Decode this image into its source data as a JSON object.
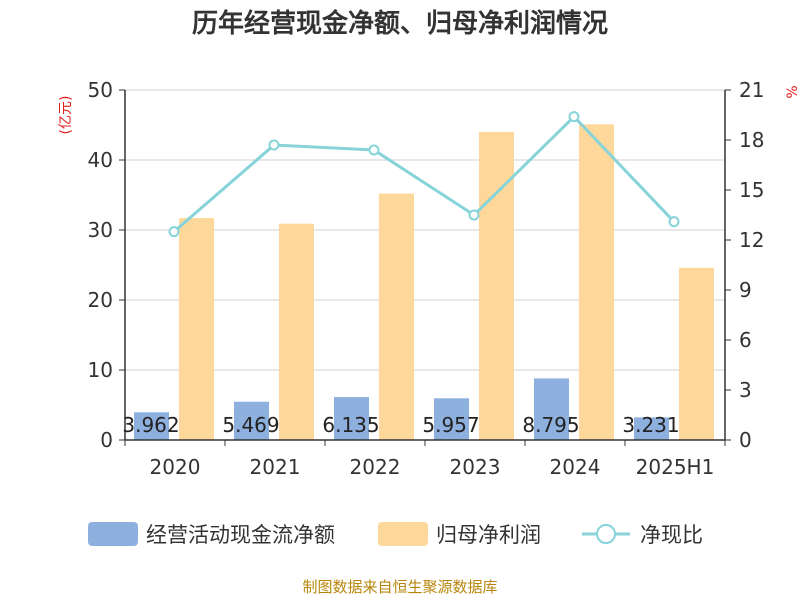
{
  "chart_data": {
    "type": "bar",
    "title": "历年经营现金净额、归母净利润情况",
    "categories": [
      "2020",
      "2021",
      "2022",
      "2023",
      "2024",
      "2025H1"
    ],
    "series": [
      {
        "name": "经营活动现金流净额",
        "type": "bar",
        "axis": "left",
        "values": [
          3.962,
          5.469,
          6.135,
          5.957,
          8.795,
          3.231
        ],
        "labels": [
          "3.962",
          "5.469",
          "6.135",
          "5.957",
          "8.795",
          "3.231"
        ]
      },
      {
        "name": "归母净利润",
        "type": "bar",
        "axis": "left",
        "values": [
          31.7,
          30.9,
          35.2,
          44.0,
          45.1,
          24.6
        ]
      },
      {
        "name": "净现比",
        "type": "line",
        "axis": "right",
        "values": [
          12.5,
          17.7,
          17.4,
          13.5,
          19.4,
          13.1
        ]
      }
    ],
    "y_left": {
      "label": "(亿元)",
      "min": 0,
      "max": 50,
      "ticks": [
        "0",
        "10",
        "20",
        "30",
        "40",
        "50"
      ]
    },
    "y_right": {
      "label": "%",
      "min": 0,
      "max": 21,
      "ticks": [
        "0",
        "3",
        "6",
        "9",
        "12",
        "15",
        "18",
        "21"
      ]
    },
    "colors": {
      "cash_bar": "#8eb0df",
      "profit_bar": "#fdd89a",
      "line": "#86d3d9",
      "grid": "#d0d0d0",
      "axis": "#333333",
      "unit": "#e02020"
    },
    "grid": true,
    "legend_position": "bottom"
  },
  "source": "制图数据来自恒生聚源数据库"
}
